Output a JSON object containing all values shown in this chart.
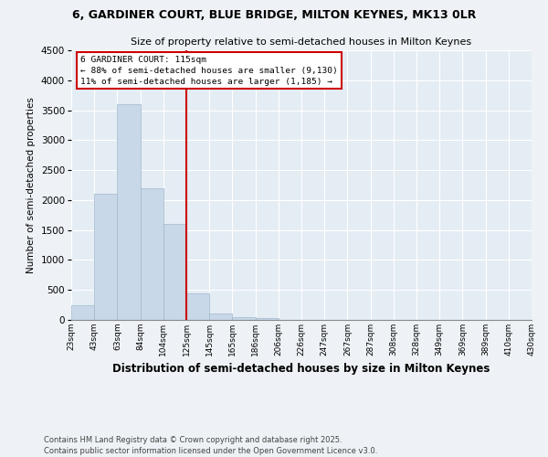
{
  "title1": "6, GARDINER COURT, BLUE BRIDGE, MILTON KEYNES, MK13 0LR",
  "title2": "Size of property relative to semi-detached houses in Milton Keynes",
  "xlabel": "Distribution of semi-detached houses by size in Milton Keynes",
  "ylabel": "Number of semi-detached properties",
  "bar_values": [
    250,
    2100,
    3600,
    2200,
    1600,
    450,
    110,
    50,
    30,
    0,
    0,
    0,
    0,
    0,
    0,
    0,
    0,
    0,
    0,
    0
  ],
  "categories": [
    "23sqm",
    "43sqm",
    "63sqm",
    "84sqm",
    "104sqm",
    "125sqm",
    "145sqm",
    "165sqm",
    "186sqm",
    "206sqm",
    "226sqm",
    "247sqm",
    "267sqm",
    "287sqm",
    "308sqm",
    "328sqm",
    "349sqm",
    "369sqm",
    "389sqm",
    "410sqm",
    "430sqm"
  ],
  "bar_color": "#c8d8e8",
  "bar_edge_color": "#a0b8cc",
  "vline_color": "#cc0000",
  "ylim": [
    0,
    4500
  ],
  "yticks": [
    0,
    500,
    1000,
    1500,
    2000,
    2500,
    3000,
    3500,
    4000,
    4500
  ],
  "annotation_title": "6 GARDINER COURT: 115sqm",
  "annotation_line1": "← 88% of semi-detached houses are smaller (9,130)",
  "annotation_line2": "11% of semi-detached houses are larger (1,185) →",
  "annotation_box_color": "#cc0000",
  "footer1": "Contains HM Land Registry data © Crown copyright and database right 2025.",
  "footer2": "Contains public sector information licensed under the Open Government Licence v3.0.",
  "bg_color": "#eef2f6",
  "plot_bg_color": "#e4ecf4"
}
